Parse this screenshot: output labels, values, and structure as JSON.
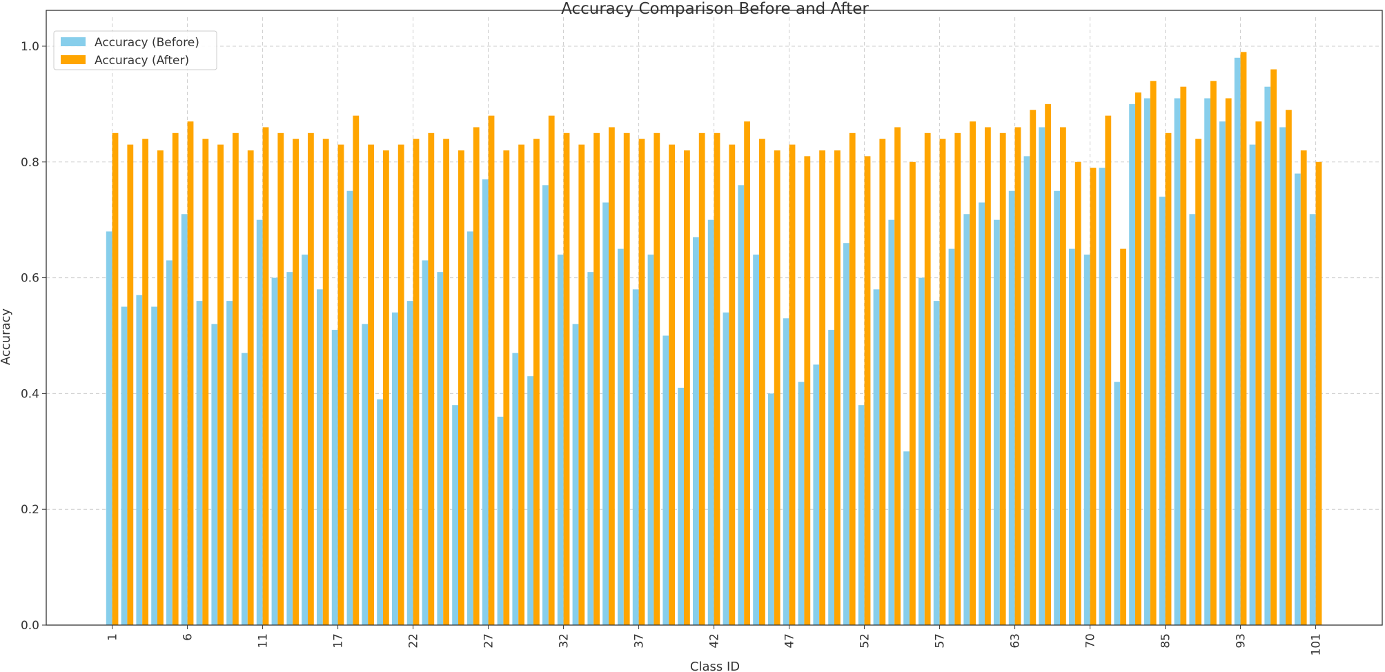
{
  "chart_data": {
    "type": "bar",
    "title": "Accuracy Comparison Before and After",
    "x_label": "Class ID",
    "y_label": "Accuracy",
    "categories": [
      "1",
      null,
      null,
      null,
      null,
      "6",
      null,
      null,
      null,
      null,
      "11",
      null,
      null,
      null,
      null,
      "17",
      null,
      null,
      null,
      null,
      "22",
      null,
      null,
      null,
      null,
      "27",
      null,
      null,
      null,
      null,
      "32",
      null,
      null,
      null,
      null,
      "37",
      null,
      null,
      null,
      null,
      "42",
      null,
      null,
      null,
      null,
      "47",
      null,
      null,
      null,
      null,
      "52",
      null,
      null,
      null,
      null,
      "57",
      null,
      null,
      null,
      null,
      "63",
      null,
      null,
      null,
      null,
      "70",
      null,
      null,
      null,
      null,
      "85",
      null,
      null,
      null,
      null,
      "93",
      null,
      null,
      null,
      null,
      "101"
    ],
    "series": [
      {
        "name": "Accuracy (Before)",
        "color": "#87ceeb",
        "values": [
          0.68,
          0.55,
          0.57,
          0.55,
          0.63,
          0.71,
          0.56,
          0.52,
          0.56,
          0.47,
          0.7,
          0.6,
          0.61,
          0.64,
          0.58,
          0.51,
          0.75,
          0.52,
          0.39,
          0.54,
          0.56,
          0.63,
          0.61,
          0.38,
          0.68,
          0.77,
          0.36,
          0.47,
          0.43,
          0.76,
          0.64,
          0.52,
          0.61,
          0.73,
          0.65,
          0.58,
          0.64,
          0.5,
          0.41,
          0.67,
          0.7,
          0.54,
          0.76,
          0.64,
          0.4,
          0.53,
          0.42,
          0.45,
          0.51,
          0.66,
          0.38,
          0.58,
          0.7,
          0.3,
          0.6,
          0.56,
          0.65,
          0.71,
          0.73,
          0.7,
          0.75,
          0.81,
          0.86,
          0.75,
          0.65,
          0.64,
          0.79,
          0.42,
          0.9,
          0.91,
          0.74,
          0.91,
          0.71,
          0.91,
          0.87,
          0.98,
          0.83,
          0.93,
          0.86,
          0.78,
          0.71
        ]
      },
      {
        "name": "Accuracy (After)",
        "color": "#ffa500",
        "values": [
          0.85,
          0.83,
          0.84,
          0.82,
          0.85,
          0.87,
          0.84,
          0.83,
          0.85,
          0.82,
          0.86,
          0.85,
          0.84,
          0.85,
          0.84,
          0.83,
          0.88,
          0.83,
          0.82,
          0.83,
          0.84,
          0.85,
          0.84,
          0.82,
          0.86,
          0.88,
          0.82,
          0.83,
          0.84,
          0.88,
          0.85,
          0.83,
          0.85,
          0.86,
          0.85,
          0.84,
          0.85,
          0.83,
          0.82,
          0.85,
          0.85,
          0.83,
          0.87,
          0.84,
          0.82,
          0.83,
          0.81,
          0.82,
          0.82,
          0.85,
          0.81,
          0.84,
          0.86,
          0.8,
          0.85,
          0.84,
          0.85,
          0.87,
          0.86,
          0.85,
          0.86,
          0.89,
          0.9,
          0.86,
          0.8,
          0.79,
          0.88,
          0.65,
          0.92,
          0.94,
          0.85,
          0.93,
          0.84,
          0.94,
          0.91,
          0.99,
          0.87,
          0.96,
          0.89,
          0.82,
          0.8
        ]
      }
    ],
    "ylim": [
      0,
      1.05
    ],
    "yticks": [
      {
        "value": 0,
        "label": "0.0"
      },
      0.2,
      0.4,
      0.6,
      0.8,
      {
        "value": 1,
        "label": "1.0"
      }
    ],
    "grid": true,
    "legend": "upper left"
  }
}
